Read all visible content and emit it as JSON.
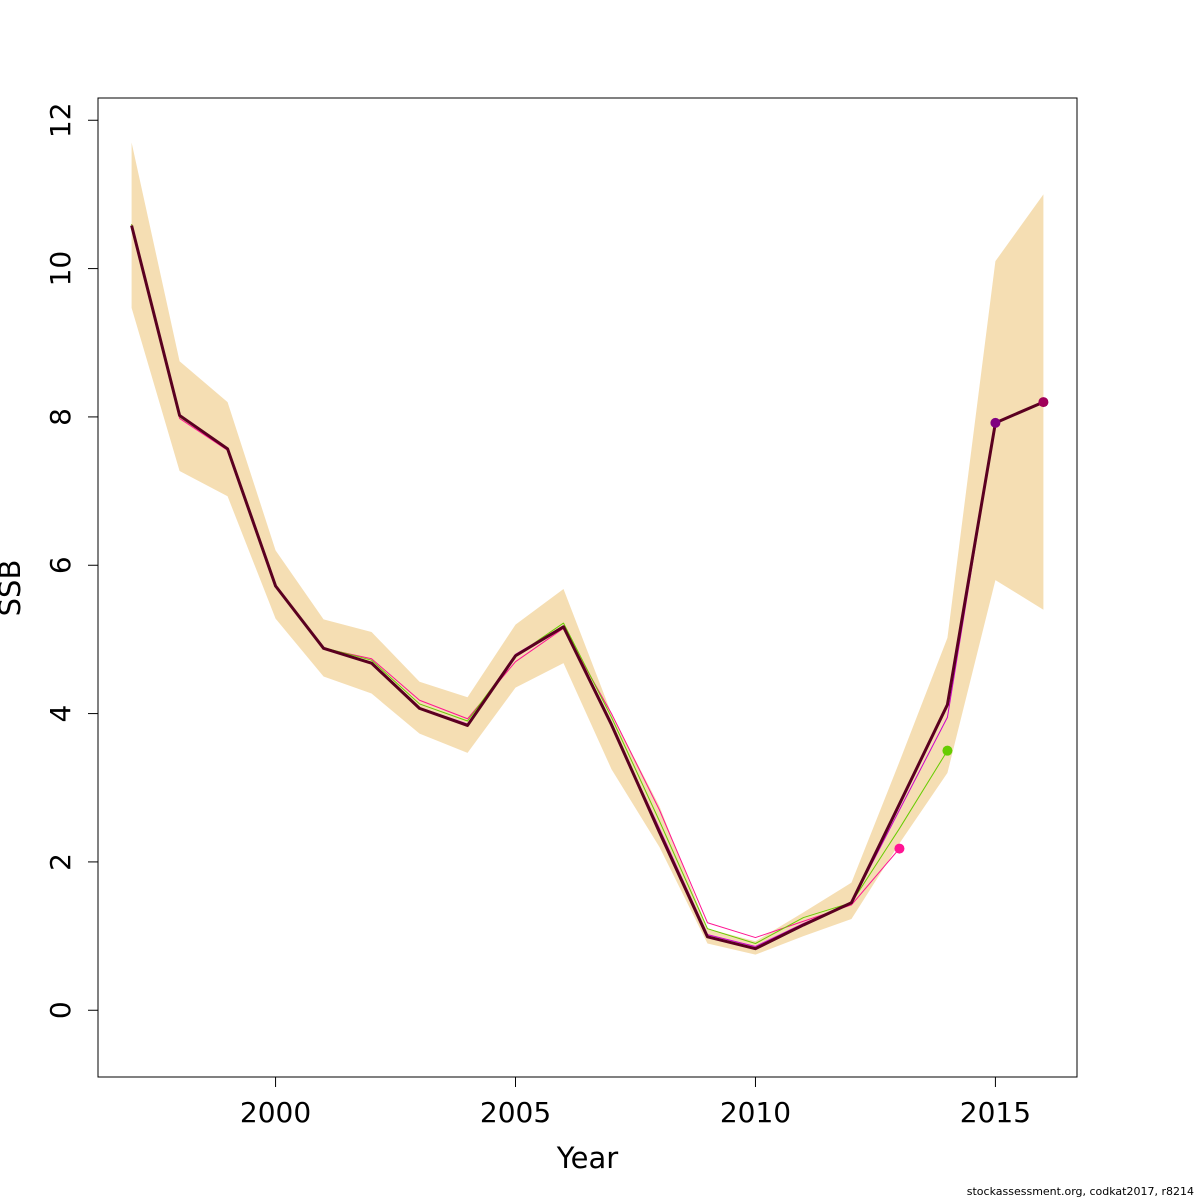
{
  "chart_data": {
    "type": "line",
    "title": "",
    "xlabel": "Year",
    "ylabel": "SSB",
    "xlim": [
      1996.3,
      2016.7
    ],
    "ylim": [
      -0.9,
      12.3
    ],
    "x_ticks": [
      2000,
      2005,
      2010,
      2015
    ],
    "y_ticks": [
      0,
      2,
      4,
      6,
      8,
      10,
      12
    ],
    "grid": false,
    "legend": "none",
    "confidence_band": {
      "color": "#f5deb3",
      "x": [
        1997,
        1998,
        1999,
        2000,
        2001,
        2002,
        2003,
        2004,
        2005,
        2006,
        2007,
        2008,
        2009,
        2010,
        2011,
        2012,
        2013,
        2014,
        2015,
        2016
      ],
      "upper": [
        11.7,
        8.75,
        8.2,
        6.2,
        5.27,
        5.1,
        4.43,
        4.22,
        5.2,
        5.68,
        4.0,
        2.75,
        1.1,
        0.93,
        1.32,
        1.72,
        3.35,
        5.02,
        10.1,
        11.0
      ],
      "lower": [
        9.47,
        7.27,
        6.93,
        5.28,
        4.5,
        4.27,
        3.73,
        3.47,
        4.35,
        4.68,
        3.25,
        2.2,
        0.9,
        0.75,
        1.0,
        1.23,
        2.25,
        3.2,
        5.8,
        5.4
      ]
    },
    "series": [
      {
        "color": "#ff1493",
        "x": [
          1997,
          1998,
          1999,
          2000,
          2001,
          2002,
          2003,
          2004,
          2005,
          2006,
          2007,
          2008,
          2009,
          2010,
          2011,
          2012,
          2013
        ],
        "values": [
          10.6,
          7.98,
          7.55,
          5.72,
          4.88,
          4.74,
          4.18,
          3.93,
          4.7,
          5.15,
          4.0,
          2.7,
          1.18,
          0.98,
          1.2,
          1.42,
          2.18
        ],
        "endpoint_marker": true
      },
      {
        "color": "#66cc00",
        "x": [
          1997,
          1998,
          1999,
          2000,
          2001,
          2002,
          2003,
          2004,
          2005,
          2006,
          2007,
          2008,
          2009,
          2010,
          2011,
          2012,
          2013,
          2014
        ],
        "values": [
          10.6,
          8.0,
          7.57,
          5.72,
          4.89,
          4.72,
          4.13,
          3.9,
          4.78,
          5.22,
          3.95,
          2.55,
          1.1,
          0.9,
          1.25,
          1.45,
          2.45,
          3.5
        ],
        "endpoint_marker": true
      },
      {
        "color": "#cc00cc",
        "x": [
          1997,
          1998,
          1999,
          2000,
          2001,
          2002,
          2003,
          2004,
          2005,
          2006,
          2007,
          2008,
          2009,
          2010,
          2011,
          2012,
          2013,
          2014,
          2015
        ],
        "values": [
          10.58,
          8.01,
          7.57,
          5.73,
          4.88,
          4.69,
          4.08,
          3.86,
          4.8,
          5.18,
          3.85,
          2.45,
          1.02,
          0.86,
          1.17,
          1.44,
          2.7,
          3.95,
          7.92
        ],
        "endpoint_marker": false
      },
      {
        "color": "#800080",
        "x": [
          2014,
          2015
        ],
        "values": [
          4.12,
          7.92
        ],
        "endpoint_marker": true
      },
      {
        "color": "#5a0020",
        "x": [
          1997,
          1998,
          1999,
          2000,
          2001,
          2002,
          2003,
          2004,
          2005,
          2006,
          2007,
          2008,
          2009,
          2010,
          2011,
          2012,
          2013,
          2014,
          2015,
          2016
        ],
        "values": [
          10.58,
          8.02,
          7.57,
          5.72,
          4.88,
          4.68,
          4.07,
          3.84,
          4.78,
          5.17,
          3.85,
          2.4,
          0.99,
          0.83,
          1.15,
          1.45,
          2.78,
          4.12,
          7.92,
          8.2
        ],
        "endpoint_marker": true,
        "endpoint_color": "#a0005a",
        "thick": true
      }
    ]
  },
  "footnote": "stockassessment.org, codkat2017, r8214"
}
